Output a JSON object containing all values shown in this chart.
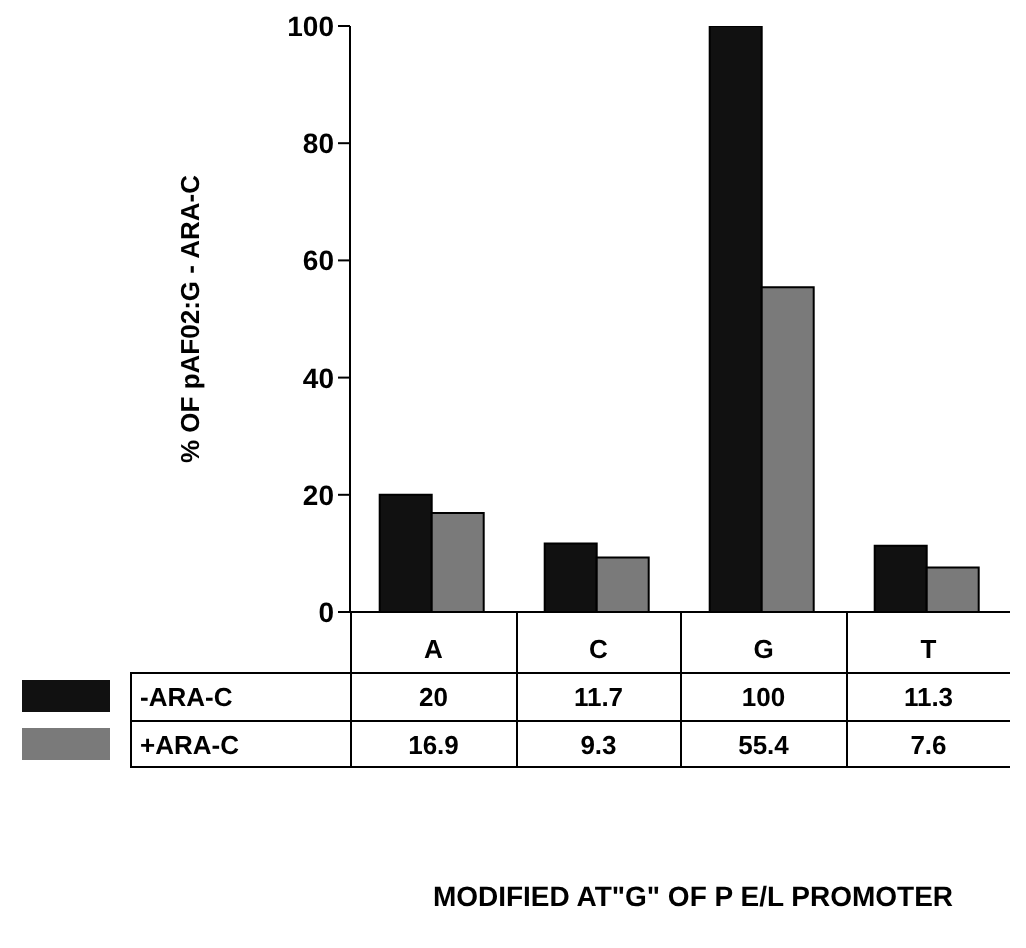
{
  "chart_data": {
    "type": "bar",
    "ylabel": "% OF pAF02:G - ARA-C",
    "annotations": [
      "MODIFIED AT\"G\" OF P E/L PROMOTER"
    ],
    "categories": [
      "A",
      "C",
      "G",
      "T"
    ],
    "series": [
      {
        "name": "-ARA-C",
        "color": "#111111",
        "values": [
          20,
          11.7,
          100,
          11.3
        ]
      },
      {
        "name": "+ARA-C",
        "color": "#7a7a7a",
        "values": [
          16.9,
          9.3,
          55.4,
          7.6
        ]
      }
    ],
    "ylim": [
      0,
      100
    ],
    "yticks": [
      0,
      20,
      40,
      60,
      80,
      100
    ],
    "grid": false,
    "legend": "bottom",
    "data_labels": true
  }
}
